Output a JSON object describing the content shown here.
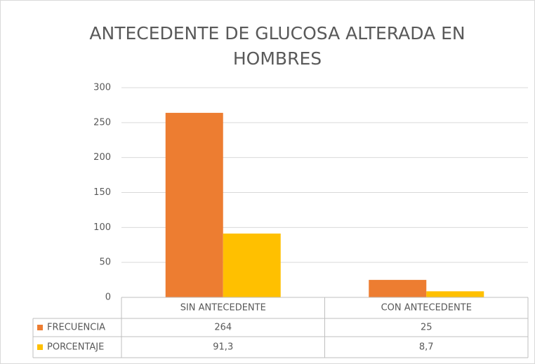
{
  "chart_data": {
    "type": "bar",
    "title": "ANTECEDENTE DE GLUCOSA ALTERADA EN HOMBRES",
    "categories": [
      "SIN ANTECEDENTE",
      "CON ANTECEDENTE"
    ],
    "series": [
      {
        "name": "FRECUENCIA",
        "color": "#ed7d31",
        "values": [
          264,
          25
        ]
      },
      {
        "name": "PORCENTAJE",
        "color": "#ffc000",
        "values": [
          91.3,
          8.7
        ],
        "value_labels": [
          "91,3",
          "8,7"
        ]
      }
    ],
    "ylim": [
      0,
      300
    ],
    "yticks": [
      0,
      50,
      100,
      150,
      200,
      250,
      300
    ],
    "grid": true,
    "data_table": true
  }
}
